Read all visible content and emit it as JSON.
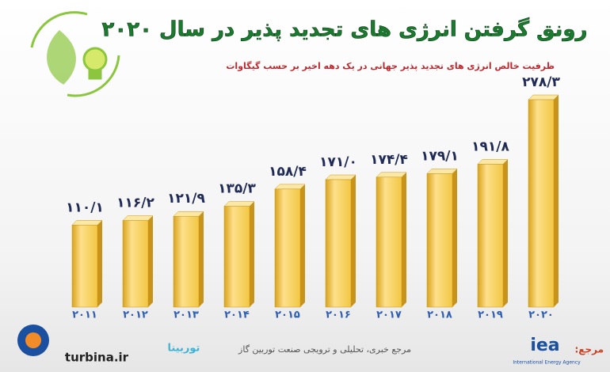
{
  "chart_data": {
    "type": "bar",
    "title": "رونق گرفتن انرژی های تجدید پذیر در سال ۲۰۲۰",
    "subtitle": "ظرفیت خالص انرژی های تجدید پذیر جهانی در یک دهه اخیر بر حسب گیگاوات",
    "categories": [
      "۲۰۱۱",
      "۲۰۱۲",
      "۲۰۱۳",
      "۲۰۱۴",
      "۲۰۱۵",
      "۲۰۱۶",
      "۲۰۱۷",
      "۲۰۱۸",
      "۲۰۱۹",
      "۲۰۲۰"
    ],
    "values": [
      110.1,
      116.2,
      121.9,
      135.3,
      158.4,
      171.0,
      174.4,
      179.1,
      191.8,
      278.3
    ],
    "value_labels": [
      "۱۱۰/۱",
      "۱۱۶/۲",
      "۱۲۱/۹",
      "۱۳۵/۳",
      "۱۵۸/۴",
      "۱۷۱/۰",
      "۱۷۴/۴",
      "۱۷۹/۱",
      "۱۹۱/۸",
      "۲۷۸/۳"
    ],
    "color": "#f2c744"
  },
  "footer": {
    "source_label": "مرجع:",
    "iea_logo": "iea",
    "iea_name": "International Energy Agency",
    "publisher": "مرجع خبری، تحلیلی و ترویجی صنعت توربین گاز",
    "brand": "توربینا",
    "site": "turbina.ir"
  }
}
